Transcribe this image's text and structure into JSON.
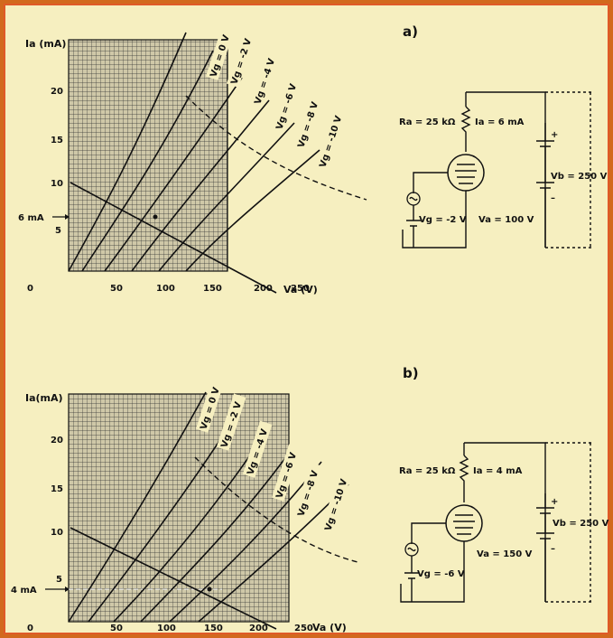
{
  "a": {
    "panel_letter": "a)",
    "ylabel": "Ia (mA)",
    "xlabel": "Va (V)",
    "yticks": [
      "20",
      "15",
      "10",
      "5"
    ],
    "xticks": [
      "0",
      "50",
      "100",
      "150",
      "200",
      "250"
    ],
    "marker": "6 mA",
    "curve_labels": [
      "Vg = 0 V",
      "Vg = -2 V",
      "Vg = -4 V",
      "Vg = -6 V",
      "Vg = -8 V",
      "Vg = -10 V"
    ],
    "circuit": {
      "ra": "Ra = 25 kΩ",
      "ia": "Ia = 6 mA",
      "vb": "Vb = 250 V",
      "vg": "Vg = -2 V",
      "va": "Va = 100 V"
    }
  },
  "b": {
    "panel_letter": "b)",
    "ylabel": "Ia(mA)",
    "xlabel": "Va (V)",
    "yticks": [
      "20",
      "15",
      "10",
      "5"
    ],
    "xticks": [
      "0",
      "50",
      "100",
      "150",
      "200",
      "250"
    ],
    "marker": "4 mA",
    "curve_labels": [
      "Vg = 0 V",
      "Vg = -2 V",
      "Vg = -4 V",
      "Vg = -6 V",
      "Vg = -8 V",
      "Vg = -10 V"
    ],
    "circuit": {
      "ra": "Ra = 25 kΩ",
      "ia": "Ia = 4 mA",
      "vb": "Vb = 250 V",
      "vg": "Vg = -6 V",
      "va": "Va = 150 V"
    }
  },
  "colors": {
    "frame": "#e05a28",
    "background": "#f6efc0",
    "grid": "#333333",
    "grid_fill": "#cfc8a8"
  }
}
